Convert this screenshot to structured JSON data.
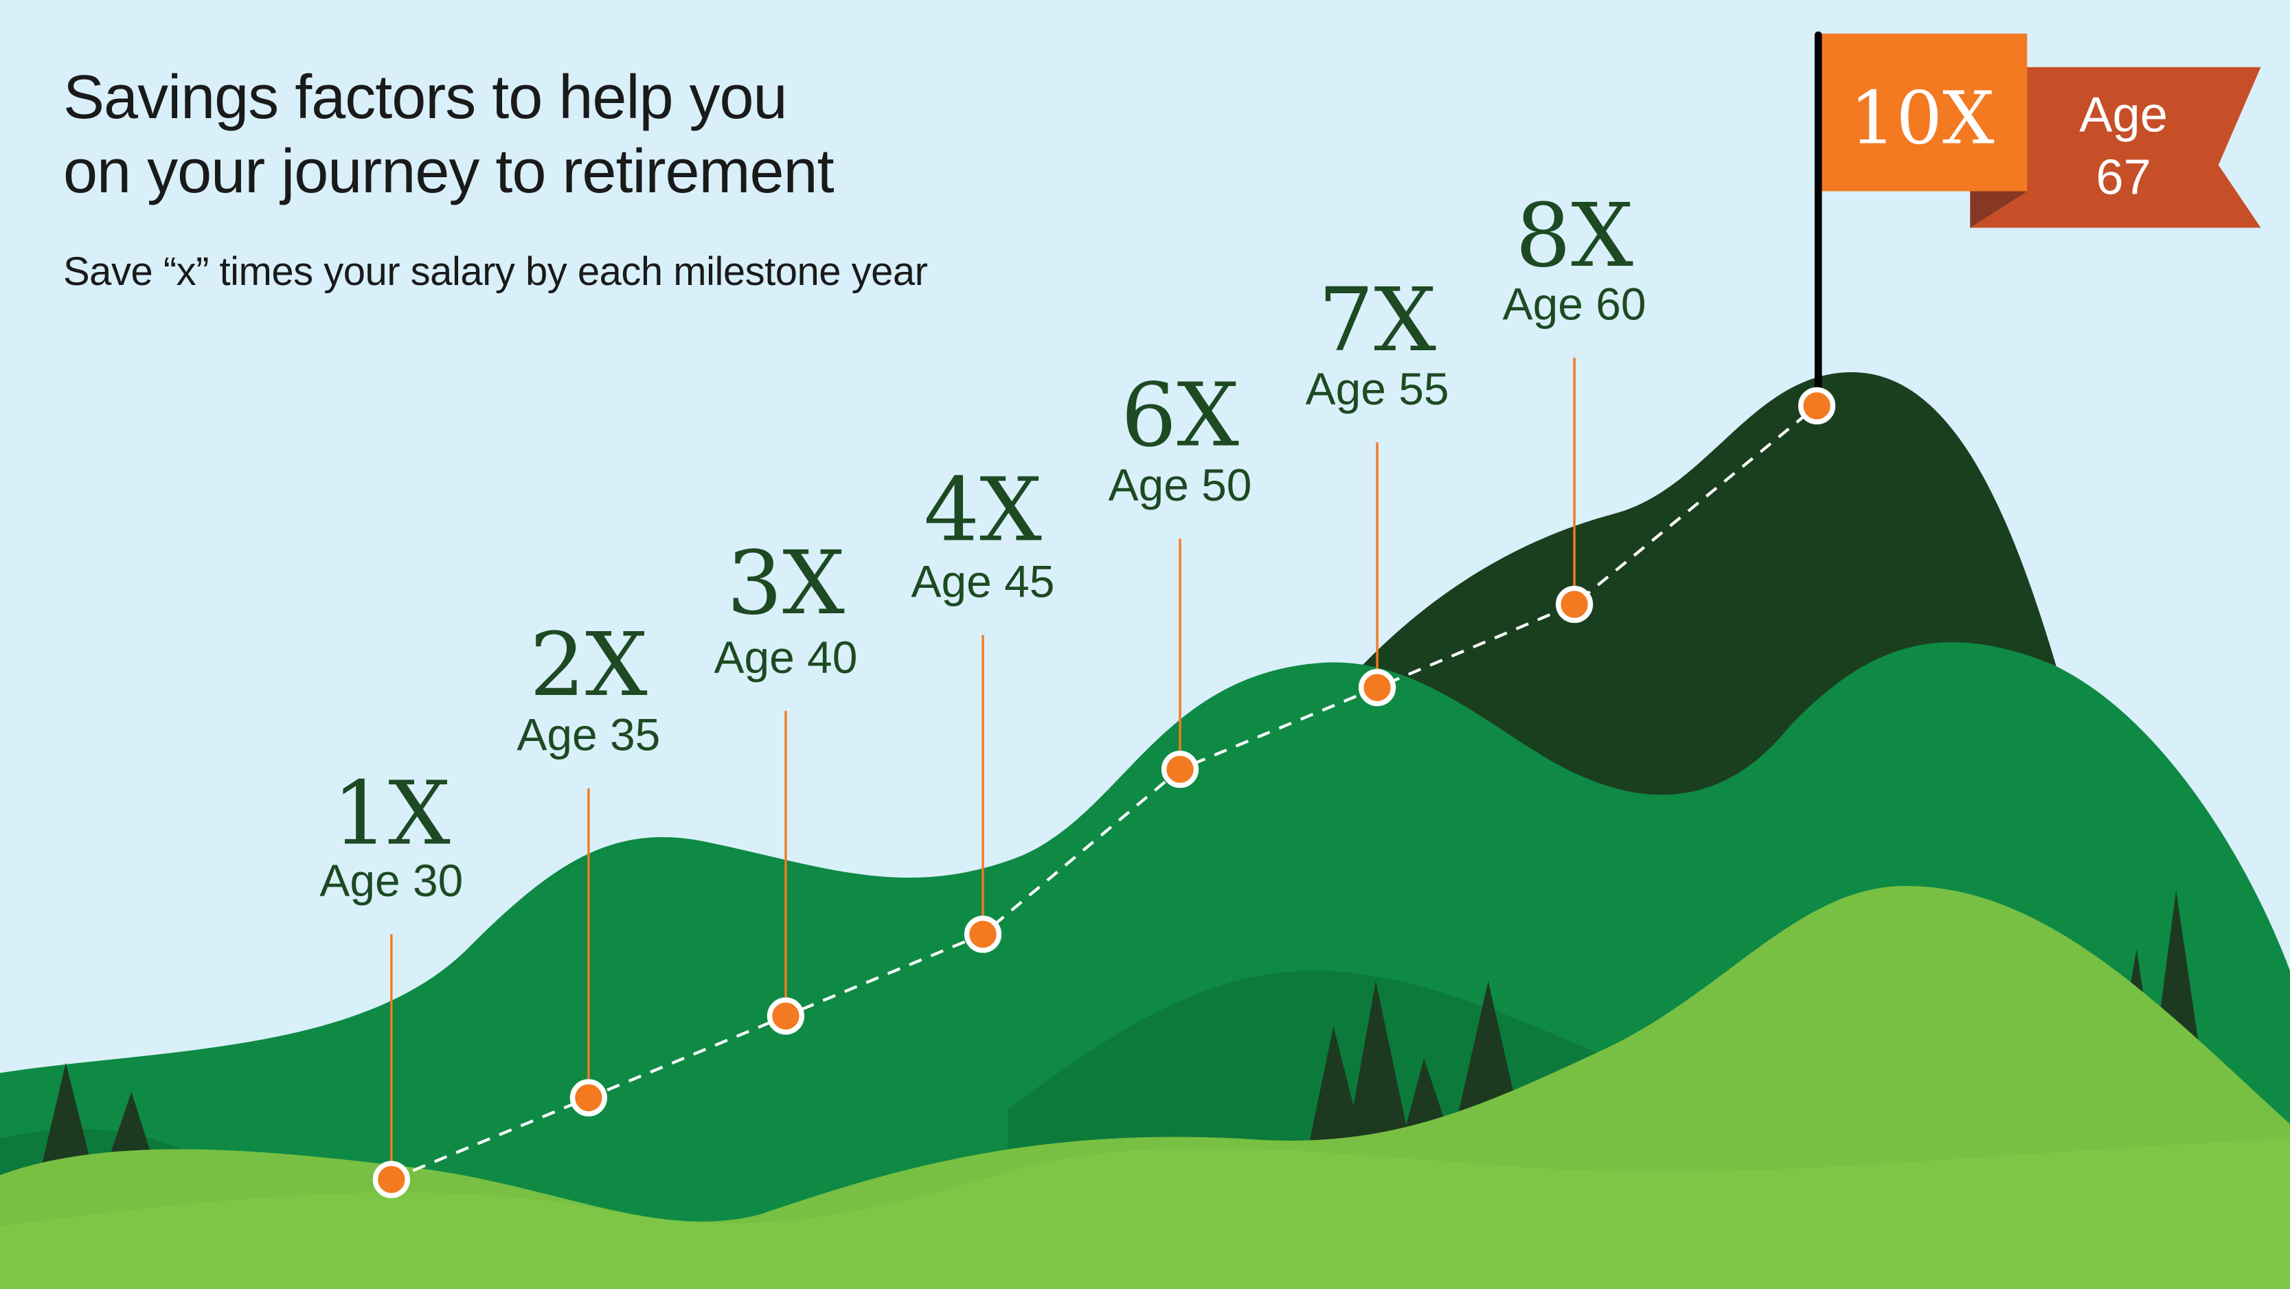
{
  "header": {
    "title_line1": "Savings factors to help you",
    "title_line2": "on your journey to retirement",
    "subtitle": "Save “x” times your salary by each milestone year"
  },
  "milestones": [
    {
      "factor": "1X",
      "age": "Age 30"
    },
    {
      "factor": "2X",
      "age": "Age 35"
    },
    {
      "factor": "3X",
      "age": "Age 40"
    },
    {
      "factor": "4X",
      "age": "Age 45"
    },
    {
      "factor": "6X",
      "age": "Age 50"
    },
    {
      "factor": "7X",
      "age": "Age 55"
    },
    {
      "factor": "8X",
      "age": "Age 60"
    }
  ],
  "flag": {
    "factor": "10X",
    "age_label": "Age",
    "age_value": "67"
  },
  "chart_data": {
    "type": "line",
    "x": [
      30,
      35,
      40,
      45,
      50,
      55,
      60,
      67
    ],
    "values": [
      1,
      2,
      3,
      4,
      6,
      7,
      8,
      10
    ],
    "xlabel": "",
    "ylabel": ""
  },
  "colors": {
    "sky": "#d9f0fa",
    "text_dark": "#1d4a22",
    "marker": "#f37a21",
    "flag_front": "#f37a21",
    "flag_back": "#c64f28",
    "mountain_dark": "#1a3f1f",
    "hill_mid": "#0e8a45",
    "hill_light": "#78c043"
  }
}
